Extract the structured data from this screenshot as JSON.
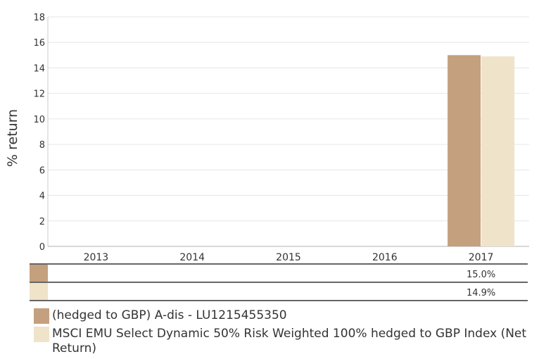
{
  "chart_data": {
    "type": "bar",
    "categories": [
      "2013",
      "2014",
      "2015",
      "2016",
      "2017"
    ],
    "series": [
      {
        "name": "(hedged to GBP) A-dis - LU1215455350",
        "color": "#c4a07e",
        "values": [
          null,
          null,
          null,
          null,
          15.0
        ],
        "value_labels": [
          "",
          "",
          "",
          "",
          "15.0%"
        ]
      },
      {
        "name": "MSCI EMU Select Dynamic 50% Risk Weighted 100% hedged to GBP Index (Net Return)",
        "color": "#efe3c9",
        "values": [
          null,
          null,
          null,
          null,
          14.9
        ],
        "value_labels": [
          "",
          "",
          "",
          "",
          "14.9%"
        ]
      }
    ],
    "ylabel": "% return",
    "ylim": [
      0,
      18
    ],
    "yticks": [
      "0",
      "2",
      "4",
      "6",
      "8",
      "10",
      "12",
      "14",
      "16",
      "18"
    ],
    "grid": true,
    "legend_position": "bottom-left"
  }
}
